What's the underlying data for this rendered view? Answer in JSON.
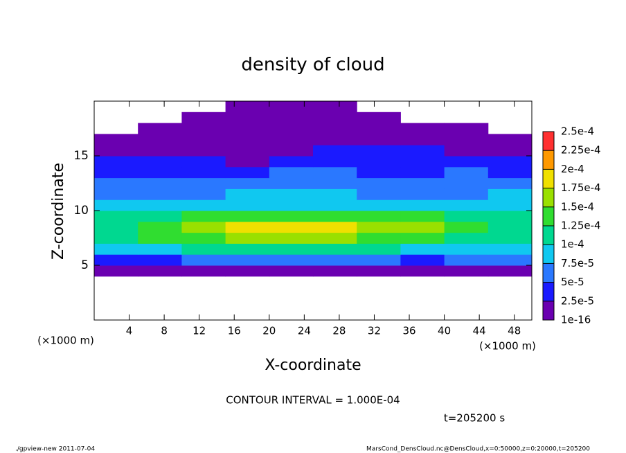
{
  "chart_data": {
    "type": "heatmap",
    "title": "density of cloud",
    "xlabel": "X-coordinate",
    "ylabel": "Z-coordinate",
    "x_unit": "(×1000 m)",
    "y_unit": "(×1000 m)",
    "xlim": [
      0,
      50
    ],
    "ylim": [
      0,
      20
    ],
    "xticks": [
      4,
      8,
      12,
      16,
      20,
      24,
      28,
      32,
      36,
      40,
      44,
      48
    ],
    "yticks": [
      5,
      10,
      15
    ],
    "x": [
      2.5,
      7.5,
      12.5,
      17.5,
      22.5,
      27.5,
      32.5,
      37.5,
      42.5,
      47.5
    ],
    "y": [
      0.5,
      1.5,
      2.5,
      3.5,
      4.5,
      5.5,
      6.5,
      7.5,
      8.5,
      9.5,
      10.5,
      11.5,
      12.5,
      13.5,
      14.5,
      15.5,
      16.5,
      17.5,
      18.5,
      19.5
    ],
    "values": [
      [
        null,
        null,
        null,
        null,
        null,
        null,
        null,
        null,
        null,
        null
      ],
      [
        null,
        null,
        null,
        null,
        null,
        null,
        null,
        null,
        null,
        null
      ],
      [
        null,
        null,
        null,
        null,
        null,
        null,
        null,
        null,
        null,
        null
      ],
      [
        null,
        null,
        null,
        null,
        null,
        null,
        null,
        null,
        null,
        null
      ],
      [
        1.5e-05,
        1.5e-05,
        1.5e-05,
        1.5e-05,
        1.5e-05,
        1.5e-05,
        1.5e-05,
        1.5e-05,
        1.5e-05,
        2e-05
      ],
      [
        4e-05,
        4.5e-05,
        5e-05,
        5e-05,
        5e-05,
        5e-05,
        5e-05,
        4.5e-05,
        5e-05,
        6e-05
      ],
      [
        8e-05,
        9e-05,
        0.0001,
        0.000105,
        0.000105,
        0.000105,
        0.0001,
        9.5e-05,
        9e-05,
        8.5e-05
      ],
      [
        0.00011,
        0.000125,
        0.00014,
        0.00015,
        0.000155,
        0.00015,
        0.000145,
        0.000135,
        0.00012,
        0.00011
      ],
      [
        0.000115,
        0.000135,
        0.00016,
        0.000185,
        0.00019,
        0.00018,
        0.00017,
        0.00016,
        0.00013,
        0.000115
      ],
      [
        0.0001,
        0.000115,
        0.00013,
        0.00014,
        0.000145,
        0.00014,
        0.000135,
        0.00013,
        0.00011,
        0.0001
      ],
      [
        8e-05,
        8.5e-05,
        9e-05,
        9.5e-05,
        9.5e-05,
        9e-05,
        9e-05,
        8.5e-05,
        8.5e-05,
        9e-05
      ],
      [
        7e-05,
        7e-05,
        7e-05,
        7.5e-05,
        8e-05,
        7.5e-05,
        7e-05,
        7e-05,
        7e-05,
        7.5e-05
      ],
      [
        6e-05,
        6e-05,
        5.5e-05,
        6e-05,
        6.5e-05,
        6e-05,
        6e-05,
        5.5e-05,
        6e-05,
        6e-05
      ],
      [
        4.5e-05,
        4.5e-05,
        4e-05,
        4.5e-05,
        5e-05,
        5e-05,
        4.5e-05,
        4.5e-05,
        5e-05,
        4.5e-05
      ],
      [
        3e-05,
        3e-05,
        2.5e-05,
        2e-05,
        3e-05,
        3.5e-05,
        3.5e-05,
        3.5e-05,
        3e-05,
        3e-05
      ],
      [
        2e-05,
        2e-05,
        1e-05,
        1e-05,
        2e-05,
        2.5e-05,
        2.5e-05,
        2.5e-05,
        2e-05,
        2e-05
      ],
      [
        1e-05,
        1e-05,
        1e-05,
        1e-05,
        1e-05,
        1e-05,
        1e-05,
        1e-05,
        1e-05,
        1e-05
      ],
      [
        null,
        1e-05,
        5e-06,
        5e-06,
        5e-06,
        5e-06,
        5e-06,
        5e-06,
        1e-05,
        null
      ],
      [
        null,
        null,
        5e-06,
        5e-06,
        5e-06,
        5e-06,
        5e-06,
        null,
        null,
        null
      ],
      [
        null,
        null,
        null,
        5e-06,
        5e-06,
        5e-06,
        null,
        null,
        null,
        null
      ]
    ],
    "levels": [
      {
        "value": 1e-16,
        "label": "1e-16"
      },
      {
        "value": 2.5e-05,
        "label": "2.5e-5"
      },
      {
        "value": 5e-05,
        "label": "5e-5"
      },
      {
        "value": 7.5e-05,
        "label": "7.5e-5"
      },
      {
        "value": 0.0001,
        "label": "1e-4"
      },
      {
        "value": 0.000125,
        "label": "1.25e-4"
      },
      {
        "value": 0.00015,
        "label": "1.5e-4"
      },
      {
        "value": 0.000175,
        "label": "1.75e-4"
      },
      {
        "value": 0.0002,
        "label": "2e-4"
      },
      {
        "value": 0.000225,
        "label": "2.25e-4"
      },
      {
        "value": 0.00025,
        "label": "2.5e-4"
      }
    ],
    "colors": [
      "#6a00b0",
      "#1a1aff",
      "#2a78ff",
      "#10c8f0",
      "#00d890",
      "#30dd30",
      "#9ae000",
      "#f0e000",
      "#ff9900",
      "#ff3030"
    ],
    "contour_note": "CONTOUR INTERVAL = 1.000E-04",
    "time_note": "t=205200 s",
    "footer_left": "./gpview-new  2011-07-04",
    "footer_right": "MarsCond_DensCloud.nc@DensCloud,x=0:50000,z=0:20000,t=205200"
  }
}
